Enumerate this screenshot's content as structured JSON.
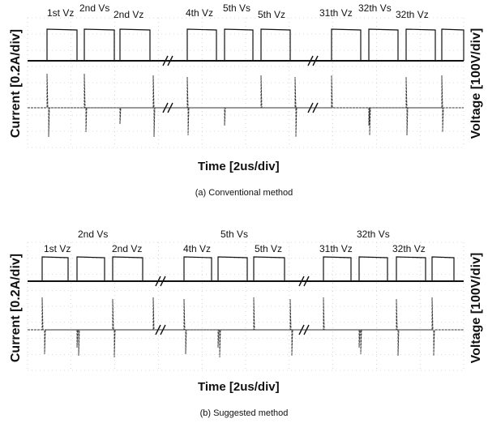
{
  "chart_data": [
    {
      "type": "line",
      "caption": "(a) Conventional method",
      "xlabel": "Time [2us/div]",
      "ylabel_left": "Current [0.2A/div]",
      "ylabel_right": "Voltage [100V/div]",
      "period_labels": [
        {
          "text": "1st Vz"
        },
        {
          "text": "2nd Vs"
        },
        {
          "text": "2nd Vz"
        },
        {
          "text": "4th Vz"
        },
        {
          "text": "5th Vs"
        },
        {
          "text": "5th Vz"
        },
        {
          "text": "31th Vz"
        },
        {
          "text": "32th Vs"
        },
        {
          "text": "32th Vz"
        }
      ]
    },
    {
      "type": "line",
      "caption": "(b) Suggested method",
      "xlabel": "Time [2us/div]",
      "ylabel_left": "Current [0.2A/div]",
      "ylabel_right": "Voltage [100V/div]",
      "period_labels": [
        {
          "text": "2nd Vs"
        },
        {
          "text": "1st Vz"
        },
        {
          "text": "2nd Vz"
        },
        {
          "text": "4th Vz"
        },
        {
          "text": "5th Vs"
        },
        {
          "text": "5th Vz"
        },
        {
          "text": "32th Vs"
        },
        {
          "text": "31th Vz"
        },
        {
          "text": "32th Vz"
        }
      ]
    }
  ]
}
